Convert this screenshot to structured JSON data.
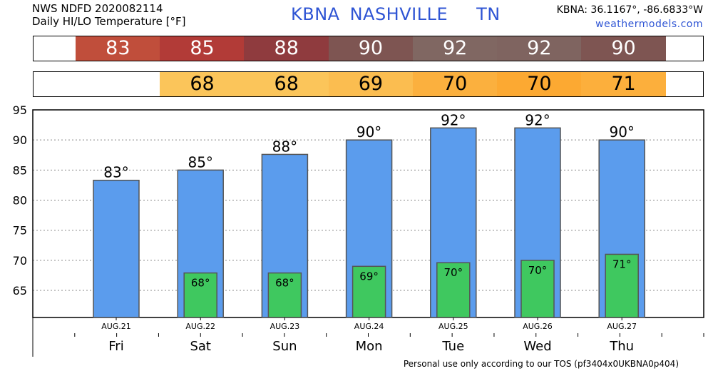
{
  "header": {
    "line1": "NWS NDFD 2020082114",
    "line2": "Daily HI/LO Temperature [°F]",
    "station_id": "KBNA",
    "station_name": "NASHVILLE",
    "state": "TN",
    "coords": "KBNA: 36.1167°, -86.6833°W",
    "site": "weathermodels.com"
  },
  "footer": "Personal use only according to our TOS (pf3404x0UKBNA0p404)",
  "hi_band": {
    "values": [
      "83",
      "85",
      "88",
      "90",
      "92",
      "92",
      "90"
    ],
    "colors": [
      "#c04e3b",
      "#b23b37",
      "#8f3b3e",
      "#7e5552",
      "#806762",
      "#7f6460",
      "#7e5552"
    ]
  },
  "lo_band": {
    "values": [
      "68",
      "68",
      "69",
      "70",
      "70",
      "71"
    ],
    "colors": [
      "#fbc55a",
      "#fbc55a",
      "#fbbd50",
      "#fbb03e",
      "#fca932",
      "#fcaf3c"
    ]
  },
  "chart_data": {
    "type": "bar",
    "categories": [
      "Fri",
      "Sat",
      "Sun",
      "Mon",
      "Tue",
      "Wed",
      "Thu"
    ],
    "dates": [
      "AUG.21",
      "AUG.22",
      "AUG.23",
      "AUG.24",
      "AUG.25",
      "AUG.26",
      "AUG.27"
    ],
    "series": [
      {
        "values": [
          83.3,
          85,
          87.6,
          90,
          92,
          92,
          90
        ],
        "color": "#5b9ced"
      },
      {
        "values": [
          null,
          67.9,
          67.9,
          69,
          69.6,
          70,
          71
        ],
        "color": "#3fc85f"
      }
    ],
    "hi_labels": [
      "83°",
      "85°",
      "88°",
      "90°",
      "92°",
      "92°",
      "90°"
    ],
    "lo_labels": [
      "",
      "68°",
      "68°",
      "69°",
      "70°",
      "70°",
      "71°"
    ],
    "yticks": [
      65,
      70,
      75,
      80,
      85,
      90,
      95
    ],
    "ylim": [
      60.5,
      95
    ],
    "grid": true
  }
}
